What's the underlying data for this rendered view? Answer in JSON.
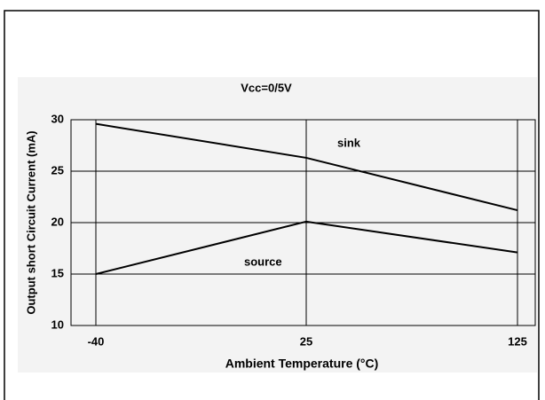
{
  "chart_data": {
    "type": "line",
    "title": "Vcc=0/5V",
    "x_label": "Ambient Temperature (°C)",
    "y_label": "Output short Circuit Current (mA)",
    "categories": [
      "-40",
      "25",
      "125"
    ],
    "series": [
      {
        "name": "sink",
        "color": "#000000",
        "values": [
          29.6,
          26.3,
          21.2
        ]
      },
      {
        "name": "source",
        "color": "#000000",
        "values": [
          15,
          20.1,
          17.1
        ]
      }
    ],
    "ylim": [
      10,
      30
    ],
    "yticks": [
      10,
      15,
      20,
      25,
      30
    ],
    "grid": true
  }
}
